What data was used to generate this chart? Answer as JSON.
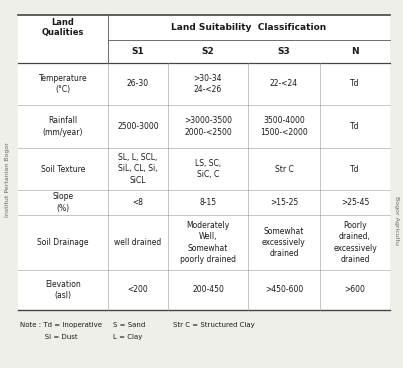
{
  "bg_color": "#efefea",
  "table_bg": "#ffffff",
  "text_color": "#1a1a1a",
  "line_color_heavy": "#444444",
  "line_color_light": "#999999",
  "col_header_main": "Land Suitability  Classification",
  "col_header_left1": "Land",
  "col_header_left2": "Qualities",
  "col_headers": [
    "S1",
    "S2",
    "S3",
    "N"
  ],
  "rows": [
    {
      "quality": "Temperature\n(°C)",
      "s1": "26-30",
      "s2": ">30-34\n24-<26",
      "s3": "22-<24",
      "n": "Td"
    },
    {
      "quality": "Rainfall\n(mm/year)",
      "s1": "2500-3000",
      "s2": ">3000-3500\n2000-<2500",
      "s3": "3500-4000\n1500-<2000",
      "n": "Td"
    },
    {
      "quality": "Soil Texture",
      "s1": "SL, L, SCL,\nSiL, CL, Si,\nSiCL",
      "s2": "LS, SC,\nSiC, C",
      "s3": "Str C",
      "n": "Td"
    },
    {
      "quality": "Slope\n(%)",
      "s1": "<8",
      "s2": "8-15",
      "s3": ">15-25",
      "n": ">25-45"
    },
    {
      "quality": "Soil Drainage",
      "s1": "well drained",
      "s2": "Moderately\nWell,\nSomewhat\npoorly drained",
      "s3": "Somewhat\nexcessively\ndrained",
      "n": "Poorly\ndrained,\nexcessively\ndrained"
    },
    {
      "quality": "Elevation\n(asl)",
      "s1": "<200",
      "s2": "200-450",
      "s3": ">450-600",
      "n": ">600"
    }
  ],
  "note_col1": "Note : Td = Inoperative",
  "note_col2": "S = Sand",
  "note_col3": "Str C = Structured Clay",
  "note_row2_col1": "           Si = Dust",
  "note_row2_col2": "L = Clay",
  "side_left_text": "Institut Pertanian Bogor",
  "side_right_text": "Bogor Agricultu",
  "font_size_header": 6.0,
  "font_size_data": 5.5,
  "font_size_note": 5.0
}
